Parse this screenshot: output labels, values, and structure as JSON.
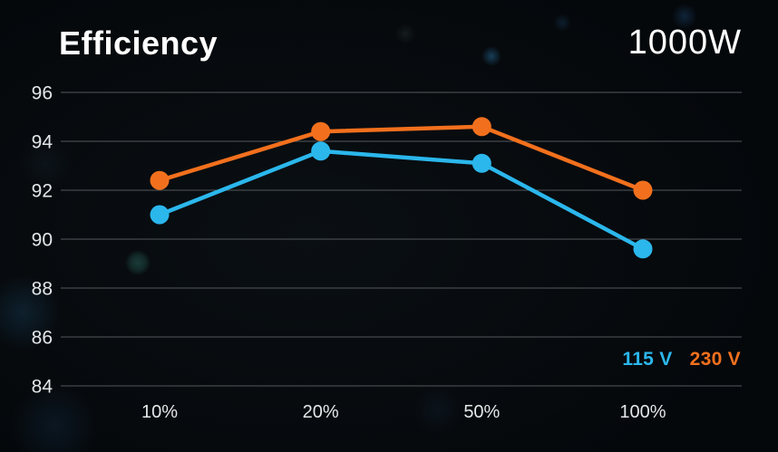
{
  "header": {
    "title": "Efficiency",
    "wattage": "1000W"
  },
  "colors": {
    "background": "#05080b",
    "grid": "#53585c",
    "tick_text": "#e4e7e9",
    "title_text": "#ffffff",
    "series_115v": "#2BB7EC",
    "series_230v": "#F2701D"
  },
  "chart_data": {
    "type": "line",
    "title": "Efficiency",
    "subtitle": "1000W",
    "categories": [
      "10%",
      "20%",
      "50%",
      "100%"
    ],
    "series": [
      {
        "name": "115 V",
        "color": "#2BB7EC",
        "values": [
          91.0,
          93.6,
          93.1,
          89.6
        ]
      },
      {
        "name": "230 V",
        "color": "#F2701D",
        "values": [
          92.4,
          94.4,
          94.6,
          92.0
        ]
      }
    ],
    "xlabel": "",
    "ylabel": "",
    "ylim": [
      84,
      96
    ],
    "ytick_step": 2,
    "yticks": [
      84,
      86,
      88,
      90,
      92,
      94,
      96
    ],
    "grid": "horizontal-only",
    "legend_position": "bottom-right",
    "legend": [
      "115 V",
      "230 V"
    ],
    "marker": "circle"
  }
}
